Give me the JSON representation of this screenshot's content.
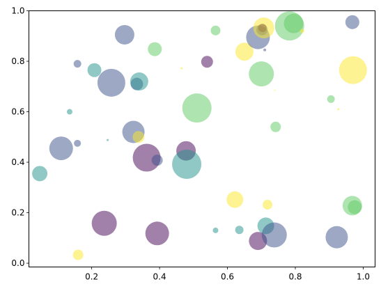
{
  "chart_data": {
    "type": "scatter",
    "title": "",
    "xlabel": "",
    "ylabel": "",
    "xlim": [
      0.015,
      1.035
    ],
    "ylim": [
      -0.015,
      1.0
    ],
    "xticks": [
      0.2,
      0.4,
      0.6,
      0.8,
      1.0
    ],
    "yticks": [
      0.0,
      0.2,
      0.4,
      0.6,
      0.8,
      1.0
    ],
    "xtick_labels": [
      "0.2",
      "0.4",
      "0.6",
      "0.8",
      "1.0"
    ],
    "ytick_labels": [
      "0.0",
      "0.2",
      "0.4",
      "0.6",
      "0.8",
      "1.0"
    ],
    "grid": false,
    "alpha": 0.5,
    "colors": {
      "purple": "#440154",
      "indigo": "#3b528b",
      "teal": "#21918c",
      "green": "#5ec962",
      "yellow": "#fde725"
    },
    "points": [
      {
        "x": 0.047,
        "y": 0.355,
        "r": 11,
        "color": "teal"
      },
      {
        "x": 0.11,
        "y": 0.455,
        "r": 17,
        "color": "indigo"
      },
      {
        "x": 0.135,
        "y": 0.6,
        "r": 4,
        "color": "teal"
      },
      {
        "x": 0.158,
        "y": 0.79,
        "r": 5.5,
        "color": "indigo"
      },
      {
        "x": 0.158,
        "y": 0.475,
        "r": 5,
        "color": "indigo"
      },
      {
        "x": 0.16,
        "y": 0.033,
        "r": 7.5,
        "color": "yellow"
      },
      {
        "x": 0.208,
        "y": 0.765,
        "r": 10,
        "color": "teal"
      },
      {
        "x": 0.237,
        "y": 0.158,
        "r": 18,
        "color": "purple"
      },
      {
        "x": 0.247,
        "y": 0.488,
        "r": 1.5,
        "color": "teal"
      },
      {
        "x": 0.258,
        "y": 0.715,
        "r": 20,
        "color": "indigo"
      },
      {
        "x": 0.297,
        "y": 0.905,
        "r": 14,
        "color": "indigo"
      },
      {
        "x": 0.323,
        "y": 0.52,
        "r": 16,
        "color": "indigo"
      },
      {
        "x": 0.333,
        "y": 0.71,
        "r": 9,
        "color": "indigo"
      },
      {
        "x": 0.338,
        "y": 0.5,
        "r": 8.5,
        "color": "yellow"
      },
      {
        "x": 0.34,
        "y": 0.72,
        "r": 13,
        "color": "teal"
      },
      {
        "x": 0.362,
        "y": 0.418,
        "r": 20,
        "color": "purple"
      },
      {
        "x": 0.386,
        "y": 0.848,
        "r": 10,
        "color": "green"
      },
      {
        "x": 0.393,
        "y": 0.118,
        "r": 17,
        "color": "purple"
      },
      {
        "x": 0.393,
        "y": 0.408,
        "r": 8,
        "color": "indigo"
      },
      {
        "x": 0.465,
        "y": 0.772,
        "r": 1.5,
        "color": "yellow"
      },
      {
        "x": 0.478,
        "y": 0.445,
        "r": 14,
        "color": "purple"
      },
      {
        "x": 0.48,
        "y": 0.392,
        "r": 21,
        "color": "teal"
      },
      {
        "x": 0.51,
        "y": 0.615,
        "r": 21,
        "color": "green"
      },
      {
        "x": 0.54,
        "y": 0.798,
        "r": 8.5,
        "color": "purple"
      },
      {
        "x": 0.565,
        "y": 0.922,
        "r": 7,
        "color": "green"
      },
      {
        "x": 0.565,
        "y": 0.13,
        "r": 4,
        "color": "teal"
      },
      {
        "x": 0.622,
        "y": 0.252,
        "r": 12,
        "color": "yellow"
      },
      {
        "x": 0.635,
        "y": 0.132,
        "r": 6,
        "color": "teal"
      },
      {
        "x": 0.65,
        "y": 0.838,
        "r": 13,
        "color": "yellow"
      },
      {
        "x": 0.69,
        "y": 0.088,
        "r": 13,
        "color": "purple"
      },
      {
        "x": 0.69,
        "y": 0.895,
        "r": 17,
        "color": "indigo"
      },
      {
        "x": 0.7,
        "y": 0.75,
        "r": 18,
        "color": "green"
      },
      {
        "x": 0.702,
        "y": 0.925,
        "r": 8,
        "color": "indigo"
      },
      {
        "x": 0.703,
        "y": 0.932,
        "r": 6,
        "color": "purple"
      },
      {
        "x": 0.707,
        "y": 0.932,
        "r": 15,
        "color": "yellow"
      },
      {
        "x": 0.71,
        "y": 0.845,
        "r": 2,
        "color": "indigo"
      },
      {
        "x": 0.713,
        "y": 0.148,
        "r": 12,
        "color": "teal"
      },
      {
        "x": 0.718,
        "y": 0.232,
        "r": 7,
        "color": "yellow"
      },
      {
        "x": 0.738,
        "y": 0.112,
        "r": 18,
        "color": "indigo"
      },
      {
        "x": 0.74,
        "y": 0.685,
        "r": 1,
        "color": "yellow"
      },
      {
        "x": 0.742,
        "y": 0.54,
        "r": 7.5,
        "color": "green"
      },
      {
        "x": 0.783,
        "y": 0.94,
        "r": 21,
        "color": "green"
      },
      {
        "x": 0.795,
        "y": 0.95,
        "r": 14,
        "color": "green"
      },
      {
        "x": 0.82,
        "y": 0.92,
        "r": 3,
        "color": "yellow"
      },
      {
        "x": 0.905,
        "y": 0.65,
        "r": 5.5,
        "color": "green"
      },
      {
        "x": 0.922,
        "y": 0.103,
        "r": 16,
        "color": "indigo"
      },
      {
        "x": 0.927,
        "y": 0.61,
        "r": 1.5,
        "color": "yellow"
      },
      {
        "x": 0.968,
        "y": 0.955,
        "r": 10,
        "color": "indigo"
      },
      {
        "x": 0.968,
        "y": 0.228,
        "r": 14,
        "color": "green"
      },
      {
        "x": 0.97,
        "y": 0.765,
        "r": 20,
        "color": "yellow"
      },
      {
        "x": 0.975,
        "y": 0.222,
        "r": 10,
        "color": "green"
      }
    ]
  }
}
